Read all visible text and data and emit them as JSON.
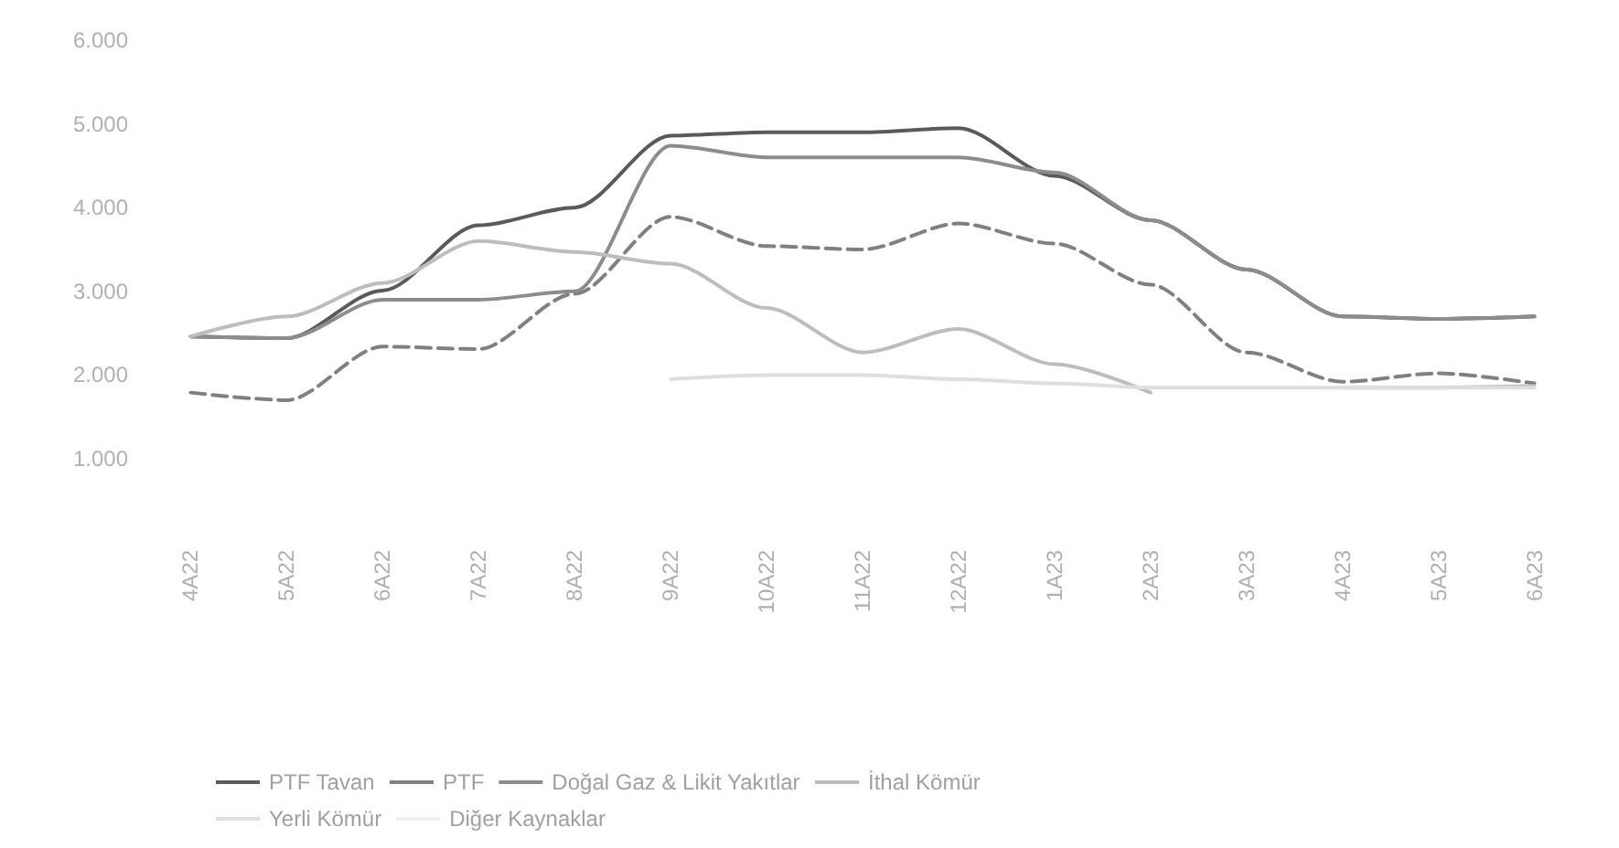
{
  "chart_data": {
    "type": "line",
    "categories": [
      "4A22",
      "5A22",
      "6A22",
      "7A22",
      "8A22",
      "9A22",
      "10A22",
      "11A22",
      "12A22",
      "1A23",
      "2A23",
      "3A23",
      "4A23",
      "5A23",
      "6A23"
    ],
    "series": [
      {
        "name": "PTF Tavan",
        "color": "#5a5a5a",
        "values": [
          2460,
          2440,
          3010,
          3790,
          4000,
          4860,
          4900,
          4900,
          4950,
          4380,
          3850,
          3260,
          2700,
          2670,
          2700
        ]
      },
      {
        "name": "PTF",
        "color": "#808080",
        "line_style": "dashed",
        "values": [
          1790,
          1700,
          2340,
          2310,
          2970,
          3890,
          3540,
          3500,
          3810,
          3570,
          3080,
          2270,
          1920,
          2020,
          1900
        ]
      },
      {
        "name": "Doğal Gaz & Likit Yakıtlar",
        "color": "#8c8c8c",
        "values": [
          2460,
          2440,
          2900,
          2900,
          3000,
          4740,
          4600,
          4600,
          4600,
          4420,
          3850,
          3260,
          2700,
          2670,
          2700
        ]
      },
      {
        "name": "İthal Kömür",
        "color": "#bdbdbd",
        "values": [
          2460,
          2700,
          3100,
          3600,
          3470,
          3330,
          2800,
          2270,
          2550,
          2130,
          1790,
          null,
          1850,
          1850,
          1870
        ]
      },
      {
        "name": "Yerli Kömür",
        "color": "#dedede",
        "values": [
          null,
          null,
          null,
          null,
          null,
          1950,
          2000,
          2000,
          1950,
          1900,
          1850,
          1850,
          1850,
          1850,
          1850
        ]
      },
      {
        "name": "Diğer Kaynaklar",
        "color": "#f0f0f0",
        "values": [
          null,
          null,
          null,
          null,
          null,
          null,
          null,
          null,
          null,
          null,
          null,
          null,
          null,
          null,
          null
        ]
      }
    ],
    "ylim": [
      1000,
      6000
    ],
    "yticks": [
      {
        "value": 1000,
        "label": "1.000"
      },
      {
        "value": 2000,
        "label": "2.000"
      },
      {
        "value": 3000,
        "label": "3.000"
      },
      {
        "value": 4000,
        "label": "4.000"
      },
      {
        "value": 5000,
        "label": "5.000"
      },
      {
        "value": 6000,
        "label": "6.000"
      }
    ],
    "grid": false,
    "legend": "bottom",
    "marker": "none",
    "line_style": "solid"
  }
}
